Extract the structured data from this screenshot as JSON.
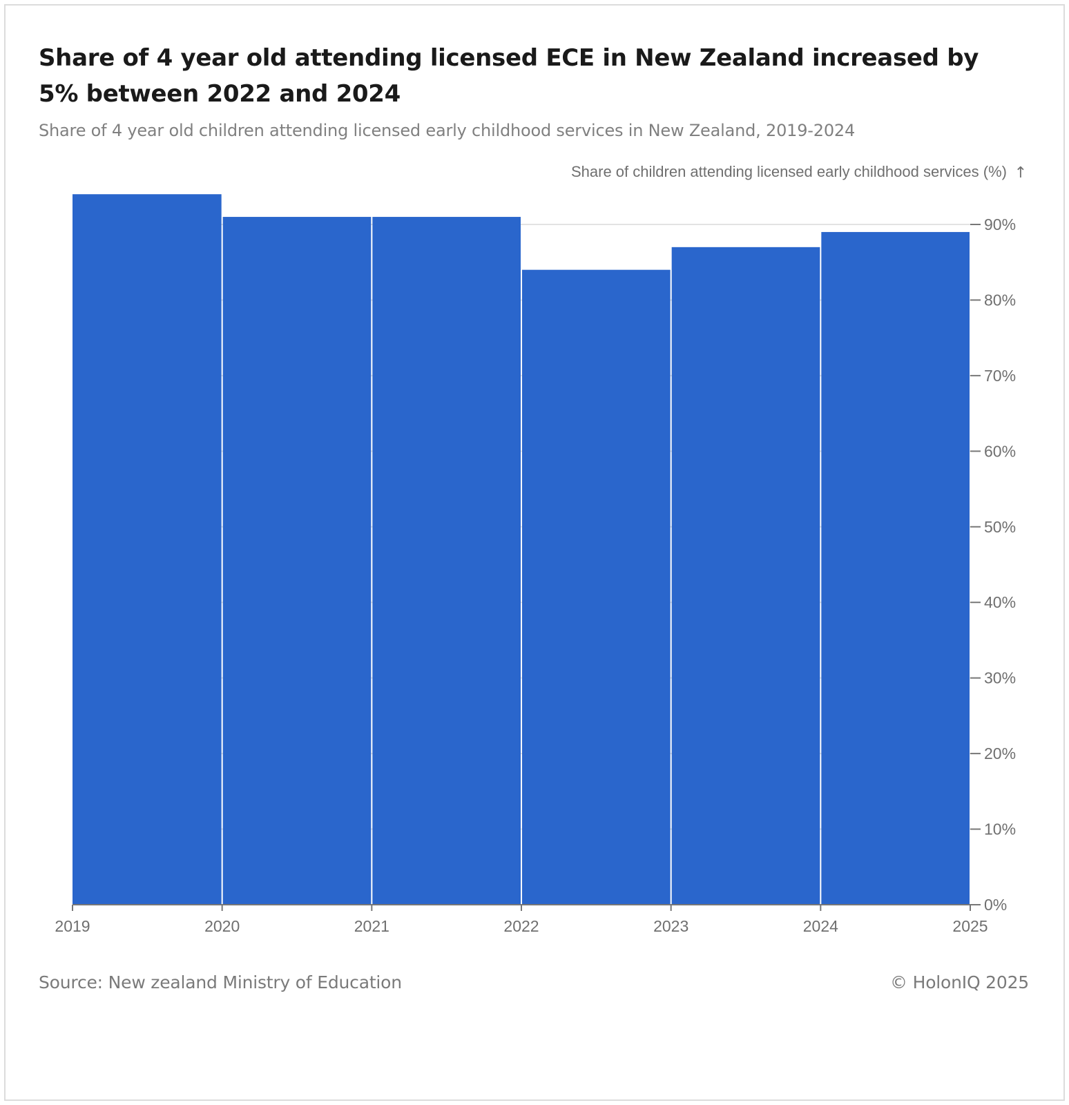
{
  "title": "Share of 4 year old attending licensed ECE in New Zealand increased by 5% between 2022 and 2024",
  "subtitle": "Share of 4 year old children attending licensed early childhood services in New Zealand, 2019-2024",
  "footer": {
    "source": "Source: New zealand Ministry of Education",
    "copyright": "© HolonIQ 2025"
  },
  "colors": {
    "bar": "#2a66cc",
    "axis": "#777777",
    "grid": "#e3e3e3",
    "label": "#6f6f6f"
  },
  "chart_data": {
    "type": "bar",
    "title": "Share of 4 year old attending licensed ECE in New Zealand increased by 5% between 2022 and 2024",
    "subtitle": "Share of 4 year old children attending licensed early childhood services in New Zealand, 2019-2024",
    "ylabel": "Share of children attending licensed early childhood services (%)",
    "ylabel_arrow": "↑",
    "y_axis_side": "right",
    "grid": "horizontal",
    "ylim": [
      0,
      90
    ],
    "yticks": [
      0,
      10,
      20,
      30,
      40,
      50,
      60,
      70,
      80,
      90
    ],
    "ytick_labels": [
      "0%",
      "10%",
      "20%",
      "30%",
      "40%",
      "50%",
      "60%",
      "70%",
      "80%",
      "90%"
    ],
    "xticks": [
      "2019",
      "2020",
      "2021",
      "2022",
      "2023",
      "2024",
      "2025"
    ],
    "categories": [
      "2019",
      "2020",
      "2021",
      "2022",
      "2023",
      "2024"
    ],
    "values": [
      94,
      91,
      91,
      84,
      87,
      89
    ]
  }
}
